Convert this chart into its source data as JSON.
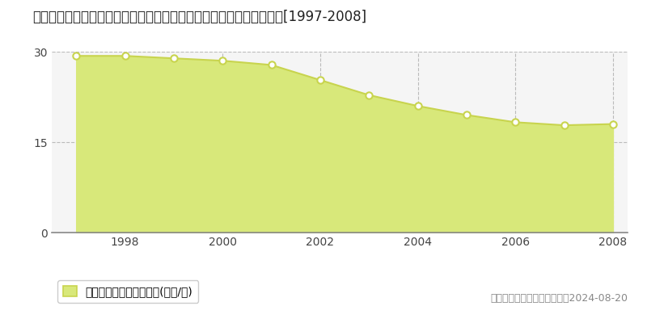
{
  "title": "宮城県仙台市太白区西多賀５丁目１４番２５　基準地価格　地価推移[1997-2008]",
  "years": [
    1997,
    1998,
    1999,
    2000,
    2001,
    2002,
    2003,
    2004,
    2005,
    2006,
    2007,
    2008
  ],
  "values": [
    29.3,
    29.3,
    28.9,
    28.5,
    27.8,
    25.3,
    22.8,
    21.0,
    19.5,
    18.3,
    17.8,
    18.0
  ],
  "line_color": "#c8d44e",
  "fill_color": "#d8e87a",
  "fill_alpha": 1.0,
  "marker_face_color": "#ffffff",
  "marker_edge_color": "#c8d44e",
  "bg_color": "#ffffff",
  "plot_bg_color": "#f5f5f5",
  "grid_color": "#bbbbbb",
  "ylim": [
    0,
    30
  ],
  "yticks": [
    0,
    15,
    30
  ],
  "xtick_years": [
    1998,
    2000,
    2002,
    2004,
    2006,
    2008
  ],
  "legend_label": "基準地価格　平均坦単価(万円/坦)",
  "copyright_text": "（Ｃ）土地価格ドットコム　2024-08-20",
  "title_fontsize": 12,
  "legend_fontsize": 10,
  "tick_fontsize": 10,
  "copyright_fontsize": 9
}
